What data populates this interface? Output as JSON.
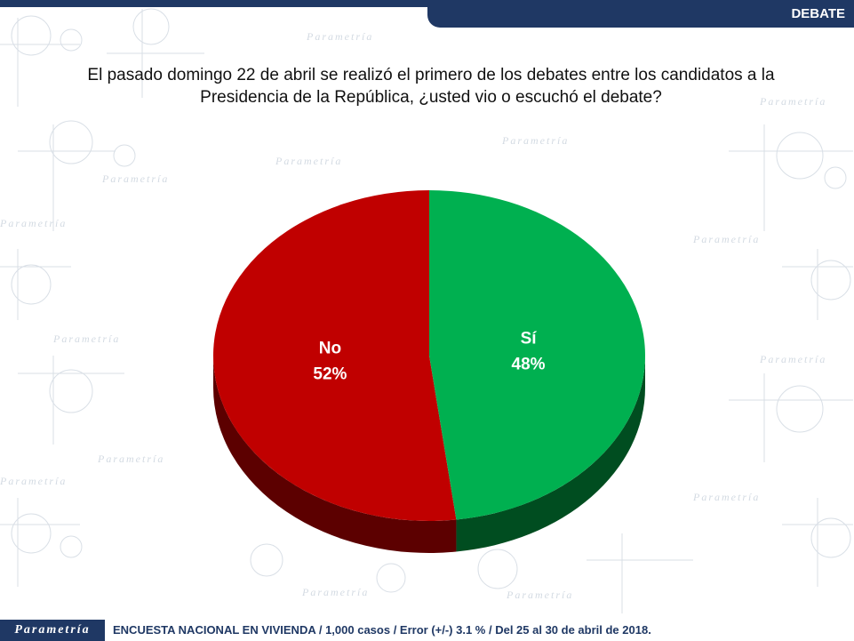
{
  "header": {
    "section_label": "DEBATE"
  },
  "title": {
    "line1": "El pasado domingo 22 de abril se realizó el primero de los debates entre los candidatos a la",
    "line2": "Presidencia de la República, ¿usted vio o escuchó el debate?"
  },
  "watermark": {
    "brand": "Parametría"
  },
  "chart_data": {
    "type": "pie",
    "title": "El pasado domingo 22 de abril se realizó el primero de los debates entre los candidatos a la Presidencia de la República, ¿usted vio o escuchó el debate?",
    "slices": [
      {
        "label": "Sí",
        "value": 48,
        "display": "48%",
        "color": "#00b050",
        "side_color": "#004d20"
      },
      {
        "label": "No",
        "value": 52,
        "display": "52%",
        "color": "#c00000",
        "side_color": "#5c0000"
      }
    ],
    "start": "12 o'clock, clockwise",
    "style": "3d"
  },
  "footer": {
    "logo": "Parametría",
    "note": "ENCUESTA NACIONAL EN VIVIENDA / 1,000 casos / Error (+/-) 3.1 % / Del 25 al 30 de abril de 2018."
  }
}
